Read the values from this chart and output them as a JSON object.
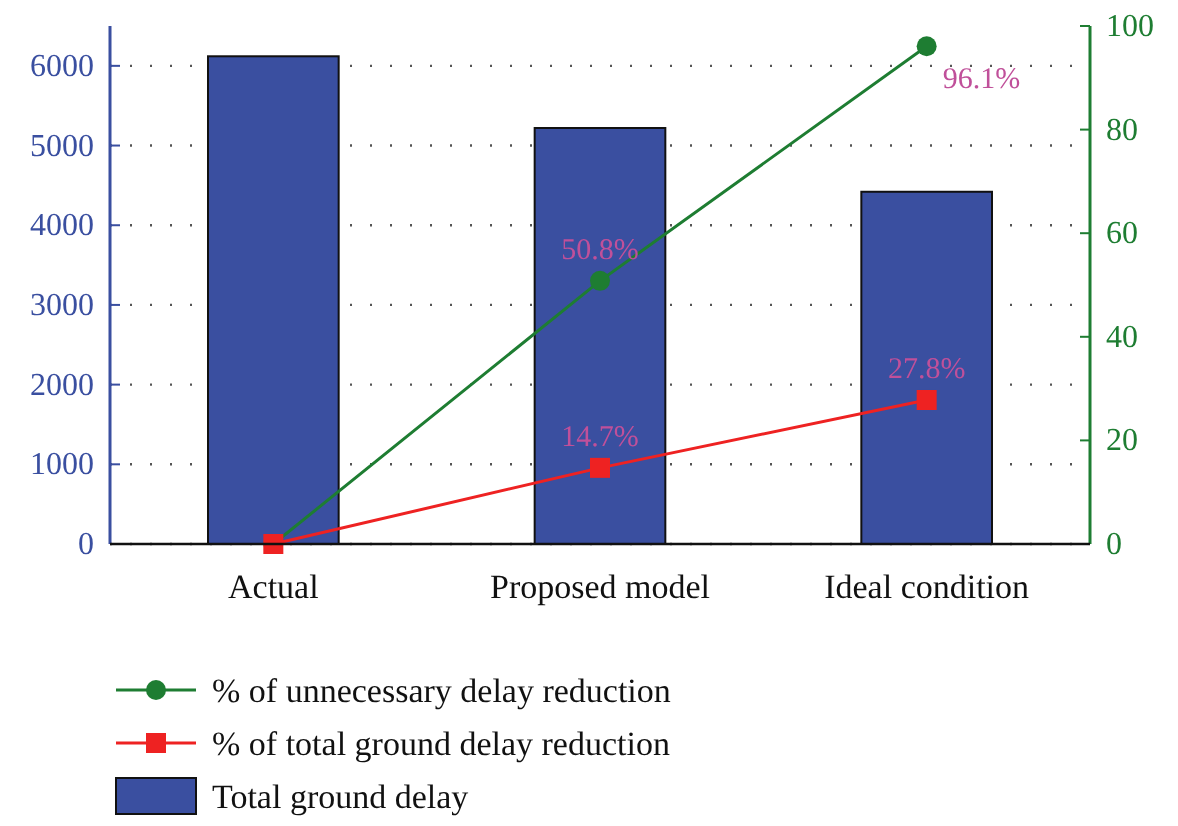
{
  "chart_data": {
    "type": "bar",
    "categories": [
      "Actual",
      "Proposed model",
      "Ideal condition"
    ],
    "series": [
      {
        "name": "% of unnecessary delay reduction",
        "type": "line",
        "axis": "y2",
        "color": "#1e7d32",
        "marker": "circle",
        "values": [
          0,
          50.8,
          96.1
        ],
        "value_labels": [
          null,
          "50.8%",
          "96.1%"
        ]
      },
      {
        "name": "% of total ground delay reduction",
        "type": "line",
        "axis": "y2",
        "color": "#ee2222",
        "marker": "square",
        "values": [
          0,
          14.7,
          27.8
        ],
        "value_labels": [
          null,
          "14.7%",
          "27.8%"
        ]
      },
      {
        "name": "Total ground delay",
        "color": "#3a4fa0",
        "values": [
          6120,
          5220,
          4420
        ]
      }
    ],
    "ylim": [
      0,
      6500
    ],
    "yticks": [
      0,
      1000,
      2000,
      3000,
      4000,
      5000,
      6000
    ],
    "y2lim": [
      0,
      100
    ],
    "y2ticks": [
      0,
      20,
      40,
      60,
      80,
      100
    ],
    "grid": "y",
    "legend": "bottom",
    "line_style": "solid"
  }
}
